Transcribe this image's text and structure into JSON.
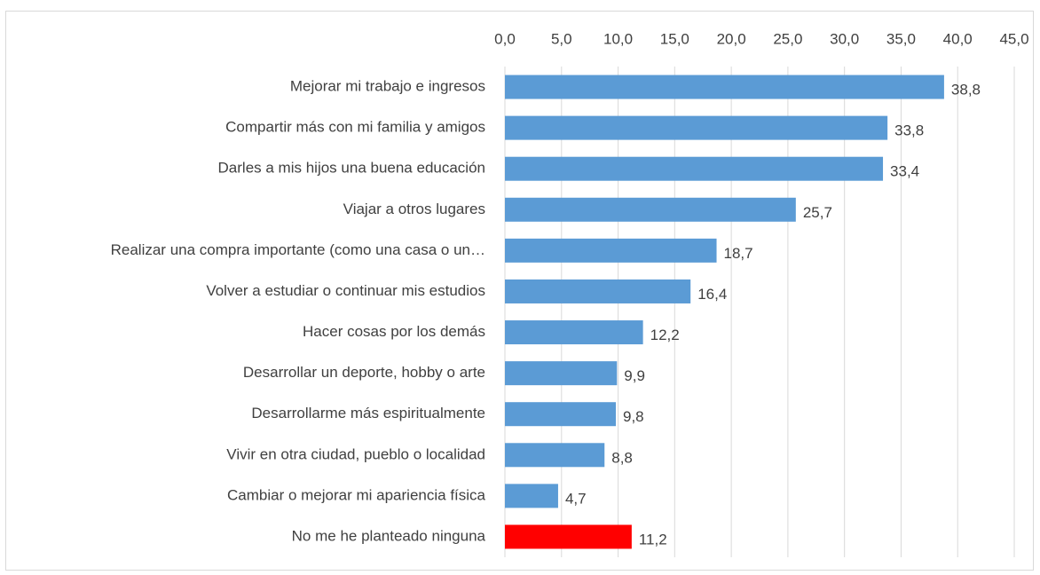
{
  "chart_data": {
    "type": "bar",
    "orientation": "horizontal",
    "categories": [
      "Mejorar mi trabajo e ingresos",
      "Compartir más con mi familia y amigos",
      "Darles a mis hijos una buena educación",
      "Viajar a otros lugares",
      "Realizar una compra importante (como una casa o un…",
      "Volver a estudiar o continuar mis estudios",
      "Hacer cosas por los demás",
      "Desarrollar un deporte, hobby o arte",
      "Desarrollarme más espiritualmente",
      "Vivir en otra ciudad, pueblo o localidad",
      "Cambiar o mejorar mi apariencia física",
      "No me he planteado ninguna"
    ],
    "values": [
      38.8,
      33.8,
      33.4,
      25.7,
      18.7,
      16.4,
      12.2,
      9.9,
      9.8,
      8.8,
      4.7,
      11.2
    ],
    "value_labels": [
      "38,8",
      "33,8",
      "33,4",
      "25,7",
      "18,7",
      "16,4",
      "12,2",
      "9,9",
      "9,8",
      "8,8",
      "4,7",
      "11,2"
    ],
    "colors": [
      "#5b9bd5",
      "#5b9bd5",
      "#5b9bd5",
      "#5b9bd5",
      "#5b9bd5",
      "#5b9bd5",
      "#5b9bd5",
      "#5b9bd5",
      "#5b9bd5",
      "#5b9bd5",
      "#5b9bd5",
      "#ff0000"
    ],
    "xlim": [
      0,
      45
    ],
    "xticks": [
      {
        "value": 0,
        "label": "0,0"
      },
      {
        "value": 5,
        "label": "5,0"
      },
      {
        "value": 10,
        "label": "10,0"
      },
      {
        "value": 15,
        "label": "15,0"
      },
      {
        "value": 20,
        "label": "20,0"
      },
      {
        "value": 25,
        "label": "25,0"
      },
      {
        "value": 30,
        "label": "30,0"
      },
      {
        "value": 35,
        "label": "35,0"
      },
      {
        "value": 40,
        "label": "40,0"
      },
      {
        "value": 45,
        "label": "45,0"
      }
    ],
    "xaxis_position": "top",
    "grid": true
  }
}
